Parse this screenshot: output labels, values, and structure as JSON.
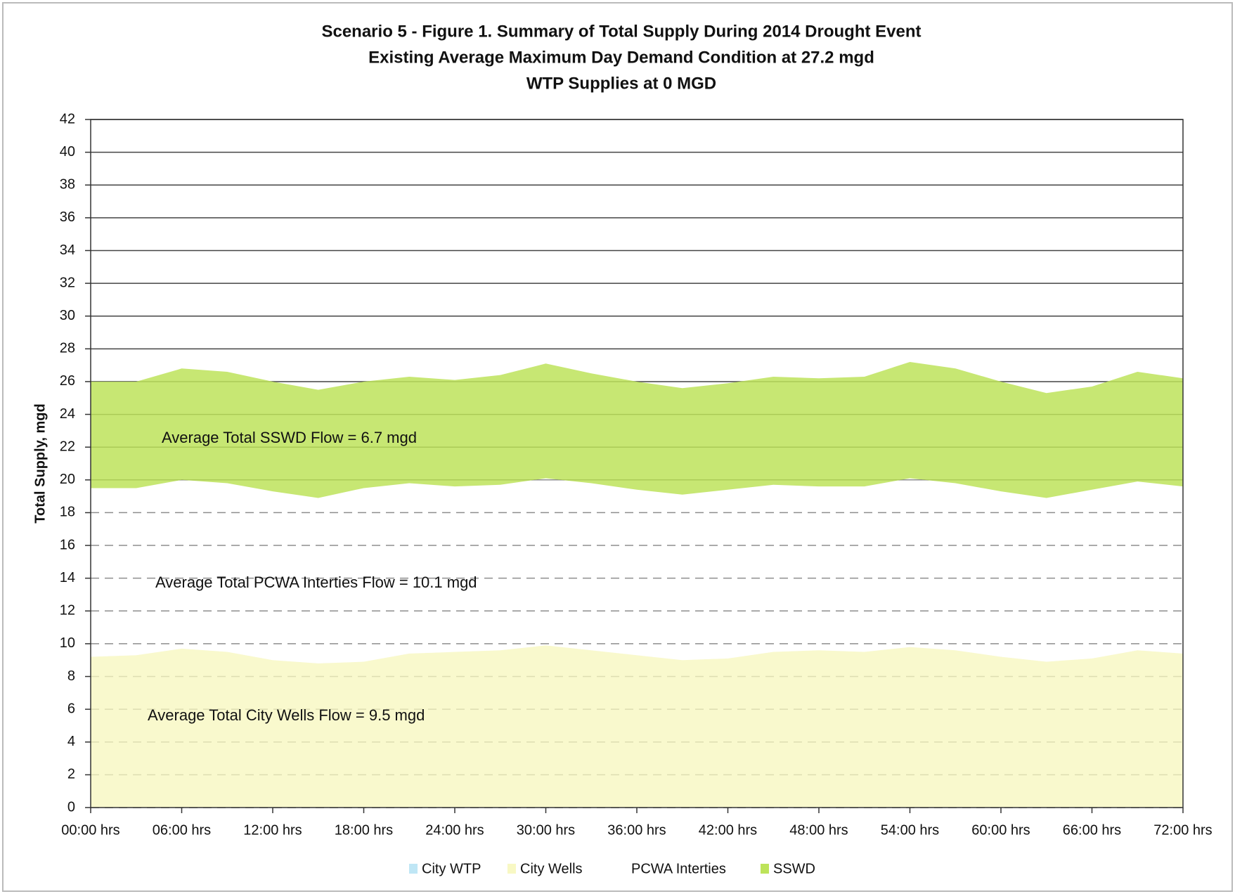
{
  "chart_data": {
    "type": "stacked_area",
    "title": [
      "Scenario 5 - Figure 1. Summary of Total Supply During 2014 Drought Event",
      "Existing Average Maximum Day Demand Condition at 27.2 mgd",
      "WTP Supplies at 0 MGD"
    ],
    "y_label": "Total Supply, mgd",
    "annotations": [
      "Average  Total SSWD Flow = 6.7 mgd",
      "Average Total PCWA Interties Flow = 10.1 mgd",
      "Average Total City Wells Flow = 9.5 mgd"
    ],
    "x": [
      0,
      3,
      6,
      9,
      12,
      15,
      18,
      21,
      24,
      27,
      30,
      33,
      36,
      39,
      42,
      45,
      48,
      51,
      54,
      57,
      60,
      63,
      66,
      69,
      72
    ],
    "series": [
      {
        "name": "City WTP",
        "color": "#bfe6f5",
        "values": [
          0,
          0,
          0,
          0,
          0,
          0,
          0,
          0,
          0,
          0,
          0,
          0,
          0,
          0,
          0,
          0,
          0,
          0,
          0,
          0,
          0,
          0,
          0,
          0,
          0
        ]
      },
      {
        "name": "City Wells",
        "color": "#f8f8c4",
        "values": [
          9.2,
          9.3,
          9.7,
          9.5,
          9.0,
          8.8,
          8.9,
          9.4,
          9.5,
          9.6,
          9.9,
          9.6,
          9.3,
          9.0,
          9.1,
          9.5,
          9.6,
          9.5,
          9.8,
          9.6,
          9.2,
          8.9,
          9.1,
          9.6,
          9.4
        ]
      },
      {
        "name": "PCWA Interties",
        "color": "#ffffff",
        "values": [
          10.3,
          10.2,
          10.3,
          10.3,
          10.3,
          10.1,
          10.6,
          10.4,
          10.1,
          10.1,
          10.2,
          10.2,
          10.1,
          10.1,
          10.3,
          10.2,
          10.0,
          10.1,
          10.3,
          10.2,
          10.1,
          10.0,
          10.3,
          10.3,
          10.2
        ]
      },
      {
        "name": "SSWD",
        "color": "#bde35a",
        "values": [
          6.5,
          6.5,
          6.8,
          6.8,
          6.7,
          6.6,
          6.5,
          6.5,
          6.5,
          6.7,
          7.0,
          6.7,
          6.6,
          6.5,
          6.5,
          6.6,
          6.6,
          6.7,
          7.1,
          7.0,
          6.7,
          6.4,
          6.3,
          6.7,
          6.6
        ]
      }
    ],
    "xlim": [
      0,
      72
    ],
    "xticks": [
      {
        "value": 0,
        "label": "00:00 hrs"
      },
      {
        "value": 6,
        "label": "06:00 hrs"
      },
      {
        "value": 12,
        "label": "12:00 hrs"
      },
      {
        "value": 18,
        "label": "18:00 hrs"
      },
      {
        "value": 24,
        "label": "24:00 hrs"
      },
      {
        "value": 30,
        "label": "30:00 hrs"
      },
      {
        "value": 36,
        "label": "36:00 hrs"
      },
      {
        "value": 42,
        "label": "42:00 hrs"
      },
      {
        "value": 48,
        "label": "48:00 hrs"
      },
      {
        "value": 54,
        "label": "54:00 hrs"
      },
      {
        "value": 60,
        "label": "60:00 hrs"
      },
      {
        "value": 66,
        "label": "66:00 hrs"
      },
      {
        "value": 72,
        "label": "72:00 hrs"
      }
    ],
    "ylim": [
      0,
      42
    ],
    "yticks": [
      0,
      2,
      4,
      6,
      8,
      10,
      12,
      14,
      16,
      18,
      20,
      22,
      24,
      26,
      28,
      30,
      32,
      34,
      36,
      38,
      40,
      42
    ],
    "grid": true,
    "legend": "bottom"
  }
}
